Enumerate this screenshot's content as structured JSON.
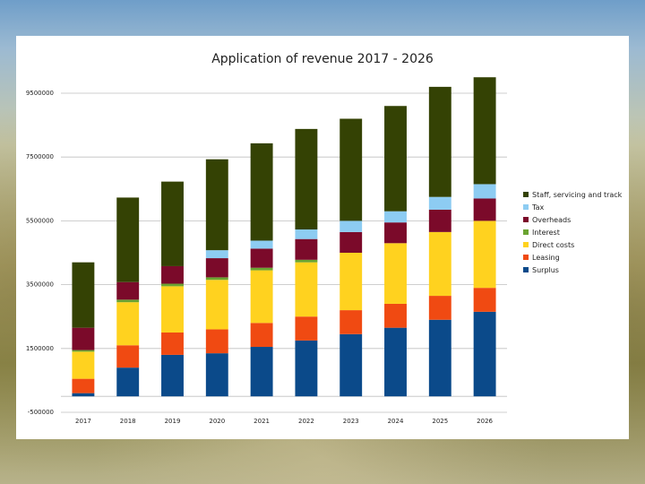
{
  "chart_data": {
    "type": "bar",
    "stacked": true,
    "title": "Application of revenue 2017 - 2026",
    "xlabel": "",
    "ylabel": "",
    "ylim": [
      -500000,
      9500000
    ],
    "yticks": [
      -500000,
      1500000,
      3500000,
      5500000,
      7500000,
      9500000
    ],
    "ytick_labels": [
      "-500000",
      "1500000",
      "3500000",
      "5500000",
      "7500000",
      "9500000"
    ],
    "categories": [
      "2017",
      "2018",
      "2019",
      "2020",
      "2021",
      "2022",
      "2023",
      "2024",
      "2025",
      "2026"
    ],
    "legend_position": "right",
    "series": [
      {
        "name": "Surplus",
        "color": "#0b4a8a",
        "values": [
          100000,
          900000,
          1300000,
          1350000,
          1550000,
          1750000,
          1950000,
          2150000,
          2400000,
          2650000
        ]
      },
      {
        "name": "Leasing",
        "color": "#f04a12",
        "values": [
          450000,
          700000,
          700000,
          750000,
          750000,
          750000,
          750000,
          750000,
          750000,
          750000
        ]
      },
      {
        "name": "Direct costs",
        "color": "#ffd21f",
        "values": [
          850000,
          1350000,
          1450000,
          1550000,
          1650000,
          1700000,
          1800000,
          1900000,
          2000000,
          2100000
        ]
      },
      {
        "name": "Interest",
        "color": "#6aa431",
        "values": [
          50000,
          80000,
          80000,
          80000,
          80000,
          80000,
          0,
          0,
          0,
          0
        ]
      },
      {
        "name": "Overheads",
        "color": "#7b0a2a",
        "values": [
          700000,
          550000,
          550000,
          600000,
          600000,
          650000,
          650000,
          650000,
          700000,
          700000
        ]
      },
      {
        "name": "Tax",
        "color": "#8dccf2",
        "values": [
          0,
          0,
          0,
          250000,
          250000,
          300000,
          350000,
          350000,
          400000,
          450000
        ]
      },
      {
        "name": "Staff, servicing and track",
        "color": "#344204",
        "values": [
          2050000,
          2650000,
          2650000,
          2850000,
          3050000,
          3150000,
          3200000,
          3300000,
          3450000,
          3350000
        ]
      }
    ],
    "legend_order": [
      "Staff, servicing and track",
      "Tax",
      "Overheads",
      "Interest",
      "Direct costs",
      "Leasing",
      "Surplus"
    ]
  }
}
